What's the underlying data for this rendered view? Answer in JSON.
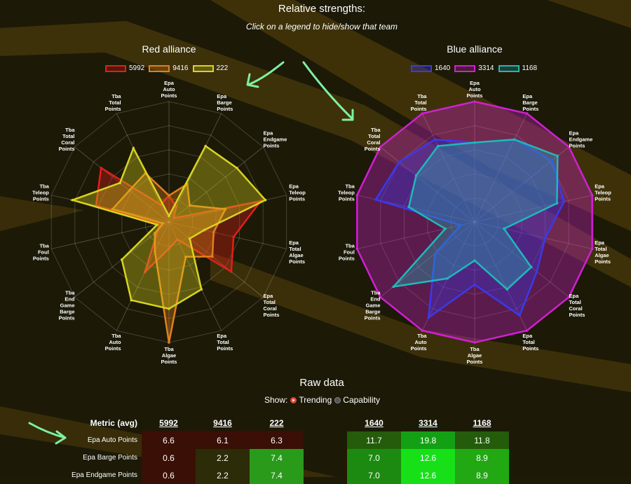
{
  "header": {
    "title": "Relative strengths:",
    "subtitle": "Click on a legend to hide/show that team"
  },
  "red": {
    "title": "Red alliance",
    "teams": [
      {
        "name": "5992",
        "color": "#e0201a"
      },
      {
        "name": "9416",
        "color": "#e0801a"
      },
      {
        "name": "222",
        "color": "#d8d420"
      }
    ]
  },
  "blue": {
    "title": "Blue alliance",
    "teams": [
      {
        "name": "1640",
        "color": "#3a3ae8"
      },
      {
        "name": "3314",
        "color": "#d020d0"
      },
      {
        "name": "1168",
        "color": "#20b8b8"
      }
    ]
  },
  "axes": [
    [
      "Epa",
      "Auto",
      "Points"
    ],
    [
      "Epa",
      "Barge",
      "Points"
    ],
    [
      "Epa",
      "Endgame",
      "Points"
    ],
    [
      "Epa",
      "Teleop",
      "Points"
    ],
    [
      "Epa",
      "Total",
      "Algae",
      "Points"
    ],
    [
      "Epa",
      "Total",
      "Coral",
      "Points"
    ],
    [
      "Epa",
      "Total",
      "Points"
    ],
    [
      "Tba",
      "Algae",
      "Points"
    ],
    [
      "Tba",
      "Auto",
      "Points"
    ],
    [
      "Tba",
      "End",
      "Game",
      "Barge",
      "Points"
    ],
    [
      "Tba",
      "Foul",
      "Points"
    ],
    [
      "Tba",
      "Teleop",
      "Points"
    ],
    [
      "Tba",
      "Total",
      "Coral",
      "Points"
    ],
    [
      "Tba",
      "Total",
      "Points"
    ]
  ],
  "chart_data": [
    {
      "type": "radar",
      "title": "Red alliance",
      "rmax": 1,
      "series": [
        {
          "name": "5992",
          "values": [
            0.22,
            0.14,
            0.05,
            0.78,
            0.55,
            0.66,
            0.16,
            0.22,
            0.46,
            0.12,
            0.08,
            0.62,
            0.72,
            0.16
          ]
        },
        {
          "name": "9416",
          "values": [
            0.22,
            0.35,
            0.22,
            0.48,
            0.38,
            0.46,
            0.32,
            1.0,
            0.27,
            0.15,
            0.05,
            0.48,
            0.42,
            0.45
          ]
        },
        {
          "name": "222",
          "values": [
            0.05,
            0.7,
            0.72,
            0.82,
            0.3,
            0.22,
            0.62,
            0.72,
            0.72,
            0.5,
            0.1,
            0.82,
            0.52,
            0.68
          ]
        }
      ]
    },
    {
      "type": "radar",
      "title": "Blue alliance",
      "rmax": 1,
      "series": [
        {
          "name": "1640",
          "values": [
            0.66,
            0.76,
            0.82,
            0.76,
            0.6,
            0.66,
            0.86,
            0.52,
            0.88,
            0.42,
            0.12,
            0.84,
            0.8,
            0.76
          ]
        },
        {
          "name": "3314",
          "values": [
            1.0,
            1.0,
            1.0,
            1.0,
            1.0,
            1.0,
            1.0,
            1.0,
            1.0,
            1.0,
            1.0,
            1.0,
            1.0,
            1.0
          ]
        },
        {
          "name": "1168",
          "values": [
            0.66,
            0.76,
            0.88,
            0.7,
            0.25,
            0.6,
            0.62,
            0.32,
            0.52,
            0.86,
            0.25,
            0.56,
            0.62,
            0.7
          ]
        }
      ]
    },
    {
      "type": "table",
      "title": "Raw data",
      "columns": [
        "Metric (avg)",
        "5992",
        "9416",
        "222",
        "1640",
        "3314",
        "1168"
      ],
      "rows": [
        {
          "metric": "Epa Auto Points",
          "values": [
            "6.6",
            "6.1",
            "6.3",
            "11.7",
            "19.8",
            "11.8"
          ]
        },
        {
          "metric": "Epa Barge Points",
          "values": [
            "0.6",
            "2.2",
            "7.4",
            "7.0",
            "12.6",
            "8.9"
          ]
        },
        {
          "metric": "Epa Endgame Points",
          "values": [
            "0.6",
            "2.2",
            "7.4",
            "7.0",
            "12.6",
            "8.9"
          ]
        }
      ]
    }
  ],
  "raw": {
    "title": "Raw data",
    "show_label": "Show:",
    "option_trending": "Trending",
    "option_capability": "Capability",
    "selected": "Trending",
    "header_metric": "Metric (avg)",
    "cell_colors": [
      [
        "#3a0f05",
        "#3a0f05",
        "#3a0f05",
        "#245c0c",
        "#14a014",
        "#245c0c"
      ],
      [
        "#3a0f05",
        "#2c2c08",
        "#2a9a1a",
        "#1c8a10",
        "#18e018",
        "#22a812"
      ],
      [
        "#3a0f05",
        "#2c2c08",
        "#2a9a1a",
        "#1c8a10",
        "#18e018",
        "#22a812"
      ]
    ]
  }
}
